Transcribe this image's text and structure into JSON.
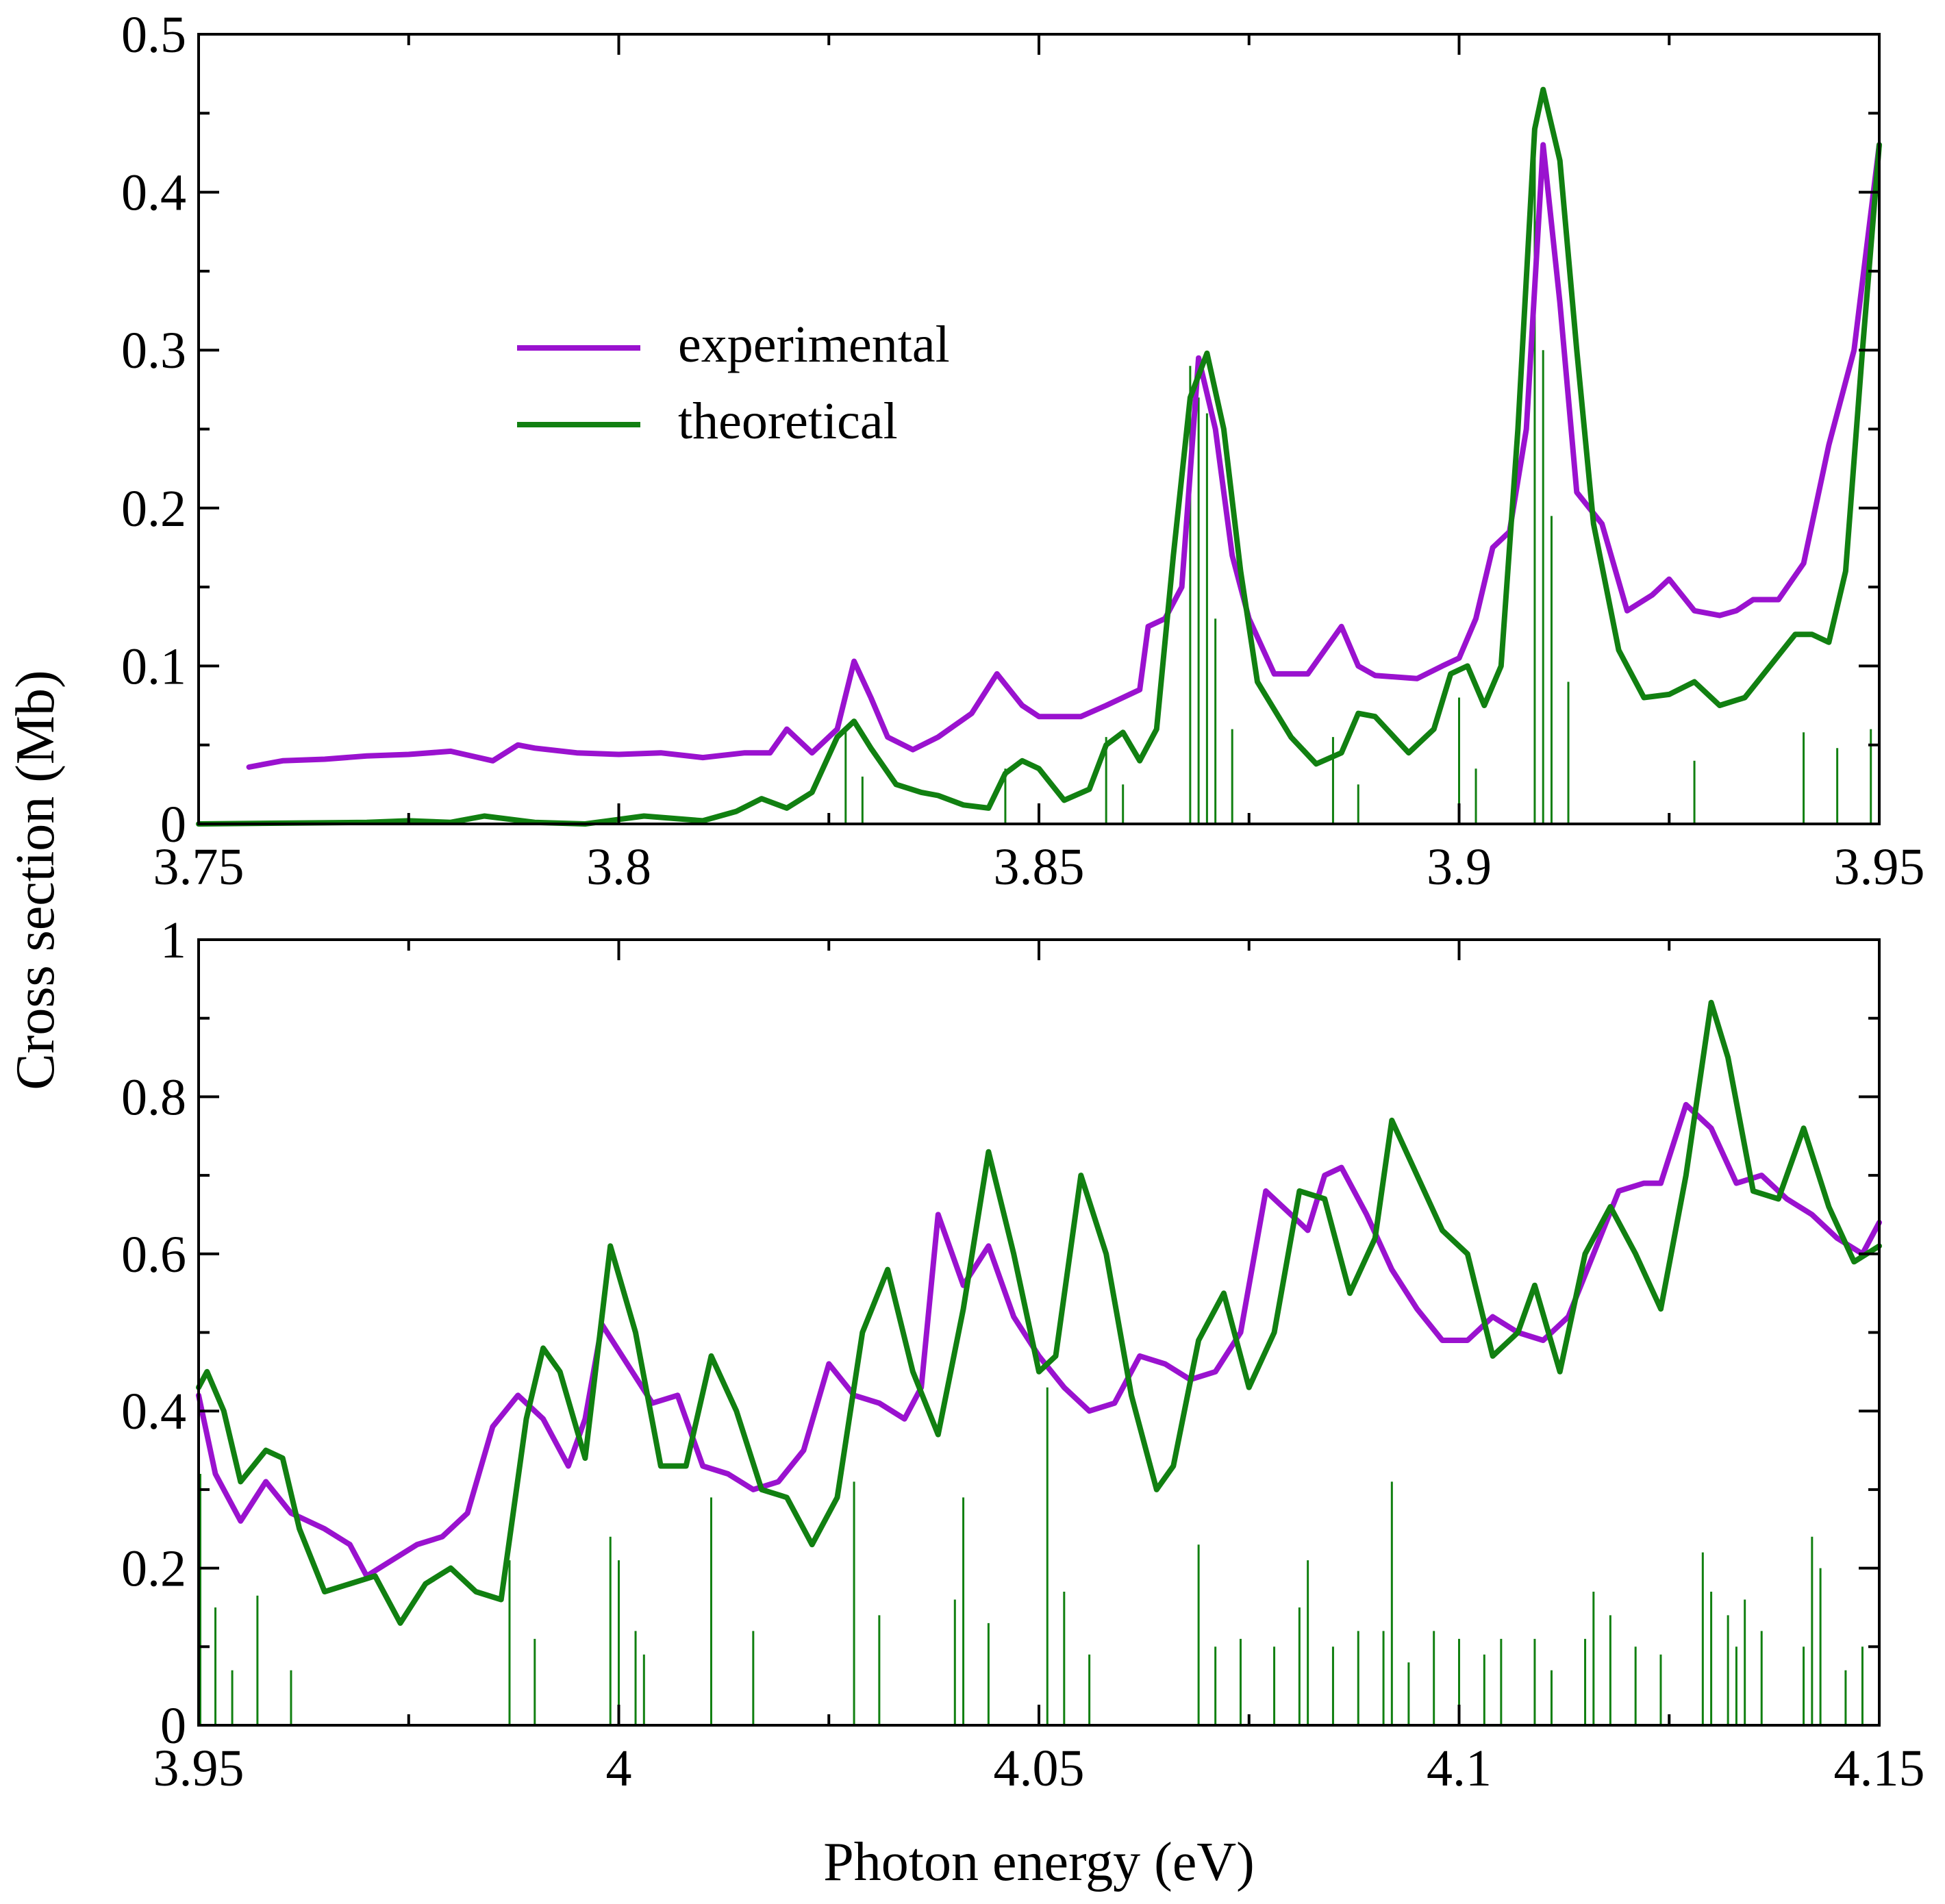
{
  "colors": {
    "experimental": "#9a12cf",
    "theoretical": "#118011",
    "sticks": "#118011",
    "axes": "#000000"
  },
  "chart_data": [
    {
      "type": "line",
      "xlabel": "",
      "ylabel": "Cross section (Mb)",
      "xlim": [
        3.75,
        3.95
      ],
      "ylim": [
        0,
        0.5
      ],
      "x_ticks": [
        "3.75",
        "3.8",
        "3.85",
        "3.9",
        "3.95"
      ],
      "y_ticks": [
        "0",
        "0.1",
        "0.2",
        "0.3",
        "0.4",
        "0.5"
      ],
      "legend": {
        "placement": "upper-left-center",
        "entries": [
          "experimental",
          "theoretical"
        ]
      },
      "grid": false,
      "series": [
        {
          "name": "experimental",
          "x": [
            3.756,
            3.76,
            3.765,
            3.77,
            3.775,
            3.78,
            3.785,
            3.788,
            3.79,
            3.795,
            3.8,
            3.805,
            3.81,
            3.815,
            3.818,
            3.82,
            3.823,
            3.826,
            3.828,
            3.83,
            3.832,
            3.835,
            3.838,
            3.842,
            3.845,
            3.848,
            3.85,
            3.855,
            3.858,
            3.86,
            3.862,
            3.863,
            3.865,
            3.867,
            3.869,
            3.871,
            3.873,
            3.875,
            3.878,
            3.882,
            3.884,
            3.886,
            3.888,
            3.89,
            3.895,
            3.898,
            3.9,
            3.902,
            3.904,
            3.906,
            3.908,
            3.91,
            3.912,
            3.914,
            3.917,
            3.92,
            3.923,
            3.925,
            3.928,
            3.931,
            3.933,
            3.935,
            3.938,
            3.941,
            3.944,
            3.947,
            3.95
          ],
          "y": [
            0.036,
            0.04,
            0.041,
            0.043,
            0.044,
            0.046,
            0.04,
            0.05,
            0.048,
            0.045,
            0.044,
            0.045,
            0.042,
            0.045,
            0.045,
            0.06,
            0.045,
            0.06,
            0.103,
            0.08,
            0.055,
            0.047,
            0.055,
            0.07,
            0.095,
            0.075,
            0.068,
            0.068,
            0.075,
            0.08,
            0.085,
            0.125,
            0.13,
            0.15,
            0.295,
            0.25,
            0.17,
            0.13,
            0.095,
            0.095,
            0.11,
            0.125,
            0.1,
            0.094,
            0.092,
            0.1,
            0.105,
            0.13,
            0.175,
            0.185,
            0.25,
            0.43,
            0.33,
            0.21,
            0.19,
            0.135,
            0.145,
            0.155,
            0.135,
            0.132,
            0.135,
            0.142,
            0.142,
            0.165,
            0.24,
            0.3,
            0.43
          ]
        },
        {
          "name": "theoretical",
          "x": [
            3.75,
            3.77,
            3.775,
            3.78,
            3.784,
            3.79,
            3.796,
            3.803,
            3.81,
            3.814,
            3.817,
            3.82,
            3.823,
            3.826,
            3.828,
            3.83,
            3.833,
            3.836,
            3.838,
            3.841,
            3.844,
            3.846,
            3.848,
            3.85,
            3.853,
            3.856,
            3.858,
            3.86,
            3.862,
            3.864,
            3.866,
            3.868,
            3.87,
            3.872,
            3.874,
            3.876,
            3.88,
            3.883,
            3.886,
            3.888,
            3.89,
            3.894,
            3.897,
            3.899,
            3.901,
            3.903,
            3.905,
            3.907,
            3.909,
            3.91,
            3.912,
            3.914,
            3.916,
            3.919,
            3.922,
            3.925,
            3.928,
            3.931,
            3.934,
            3.937,
            3.94,
            3.942,
            3.944,
            3.946,
            3.948,
            3.95
          ],
          "y": [
            0.0,
            0.001,
            0.002,
            0.001,
            0.005,
            0.001,
            0.0,
            0.005,
            0.002,
            0.008,
            0.016,
            0.01,
            0.02,
            0.055,
            0.065,
            0.048,
            0.025,
            0.02,
            0.018,
            0.012,
            0.01,
            0.032,
            0.04,
            0.035,
            0.015,
            0.022,
            0.05,
            0.058,
            0.04,
            0.06,
            0.17,
            0.27,
            0.298,
            0.25,
            0.16,
            0.09,
            0.055,
            0.038,
            0.045,
            0.07,
            0.068,
            0.045,
            0.06,
            0.095,
            0.1,
            0.075,
            0.1,
            0.25,
            0.44,
            0.465,
            0.42,
            0.3,
            0.19,
            0.11,
            0.08,
            0.082,
            0.09,
            0.075,
            0.08,
            0.1,
            0.12,
            0.12,
            0.115,
            0.16,
            0.3,
            0.43
          ]
        }
      ],
      "sticks": {
        "x": [
          3.827,
          3.829,
          3.846,
          3.858,
          3.86,
          3.868,
          3.869,
          3.87,
          3.871,
          3.873,
          3.885,
          3.888,
          3.9,
          3.902,
          3.909,
          3.91,
          3.911,
          3.913,
          3.928,
          3.941,
          3.945,
          3.949
        ],
        "y": [
          0.06,
          0.03,
          0.035,
          0.055,
          0.025,
          0.29,
          0.27,
          0.26,
          0.13,
          0.06,
          0.055,
          0.025,
          0.08,
          0.035,
          0.43,
          0.3,
          0.195,
          0.09,
          0.04,
          0.058,
          0.048,
          0.06
        ]
      }
    },
    {
      "type": "line",
      "xlabel": "Photon energy (eV)",
      "ylabel": "Cross section (Mb)",
      "xlim": [
        3.95,
        4.15
      ],
      "ylim": [
        0,
        1
      ],
      "x_ticks": [
        "3.95",
        "4",
        "4.05",
        "4.1",
        "4.15"
      ],
      "y_ticks": [
        "0",
        "0.2",
        "0.4",
        "0.6",
        "0.8",
        "1"
      ],
      "grid": false,
      "series": [
        {
          "name": "experimental",
          "x": [
            3.95,
            3.952,
            3.955,
            3.958,
            3.961,
            3.965,
            3.968,
            3.97,
            3.973,
            3.976,
            3.979,
            3.982,
            3.985,
            3.988,
            3.991,
            3.994,
            3.996,
            3.998,
            4.001,
            4.004,
            4.007,
            4.01,
            4.013,
            4.016,
            4.019,
            4.022,
            4.025,
            4.028,
            4.031,
            4.034,
            4.036,
            4.038,
            4.041,
            4.044,
            4.047,
            4.05,
            4.053,
            4.056,
            4.059,
            4.062,
            4.065,
            4.068,
            4.071,
            4.074,
            4.077,
            4.08,
            4.082,
            4.084,
            4.086,
            4.089,
            4.092,
            4.095,
            4.098,
            4.101,
            4.104,
            4.107,
            4.11,
            4.113,
            4.116,
            4.119,
            4.122,
            4.124,
            4.127,
            4.13,
            4.133,
            4.136,
            4.139,
            4.142,
            4.145,
            4.148,
            4.15
          ],
          "y": [
            0.42,
            0.32,
            0.26,
            0.31,
            0.27,
            0.25,
            0.23,
            0.19,
            0.21,
            0.23,
            0.24,
            0.27,
            0.38,
            0.42,
            0.39,
            0.33,
            0.39,
            0.51,
            0.46,
            0.41,
            0.42,
            0.33,
            0.32,
            0.3,
            0.31,
            0.35,
            0.46,
            0.42,
            0.41,
            0.39,
            0.43,
            0.65,
            0.56,
            0.61,
            0.52,
            0.47,
            0.43,
            0.4,
            0.41,
            0.47,
            0.46,
            0.44,
            0.45,
            0.5,
            0.68,
            0.65,
            0.63,
            0.7,
            0.71,
            0.65,
            0.58,
            0.53,
            0.49,
            0.49,
            0.52,
            0.5,
            0.49,
            0.52,
            0.6,
            0.68,
            0.69,
            0.69,
            0.79,
            0.76,
            0.69,
            0.7,
            0.67,
            0.65,
            0.62,
            0.6,
            0.64
          ]
        },
        {
          "name": "theoretical",
          "x": [
            3.95,
            3.951,
            3.953,
            3.955,
            3.958,
            3.96,
            3.962,
            3.965,
            3.968,
            3.971,
            3.974,
            3.977,
            3.98,
            3.983,
            3.986,
            3.989,
            3.991,
            3.993,
            3.996,
            3.999,
            4.002,
            4.005,
            4.008,
            4.011,
            4.014,
            4.017,
            4.02,
            4.023,
            4.026,
            4.029,
            4.032,
            4.035,
            4.038,
            4.041,
            4.044,
            4.047,
            4.05,
            4.052,
            4.055,
            4.058,
            4.061,
            4.064,
            4.066,
            4.069,
            4.072,
            4.075,
            4.078,
            4.081,
            4.084,
            4.087,
            4.09,
            4.092,
            4.095,
            4.098,
            4.101,
            4.104,
            4.107,
            4.109,
            4.112,
            4.115,
            4.118,
            4.121,
            4.124,
            4.127,
            4.13,
            4.132,
            4.135,
            4.138,
            4.141,
            4.144,
            4.147,
            4.15
          ],
          "y": [
            0.43,
            0.45,
            0.4,
            0.31,
            0.35,
            0.34,
            0.25,
            0.17,
            0.18,
            0.19,
            0.13,
            0.18,
            0.2,
            0.17,
            0.16,
            0.39,
            0.48,
            0.45,
            0.34,
            0.61,
            0.5,
            0.33,
            0.33,
            0.47,
            0.4,
            0.3,
            0.29,
            0.23,
            0.29,
            0.5,
            0.58,
            0.45,
            0.37,
            0.53,
            0.73,
            0.6,
            0.45,
            0.47,
            0.7,
            0.6,
            0.42,
            0.3,
            0.33,
            0.49,
            0.55,
            0.43,
            0.5,
            0.68,
            0.67,
            0.55,
            0.62,
            0.77,
            0.7,
            0.63,
            0.6,
            0.47,
            0.5,
            0.56,
            0.45,
            0.6,
            0.66,
            0.6,
            0.53,
            0.7,
            0.92,
            0.85,
            0.68,
            0.67,
            0.76,
            0.66,
            0.59,
            0.61
          ]
        }
      ],
      "sticks": {
        "x": [
          3.9502,
          3.952,
          3.954,
          3.957,
          3.961,
          3.987,
          3.99,
          3.999,
          4.0,
          4.002,
          4.003,
          4.011,
          4.016,
          4.028,
          4.031,
          4.04,
          4.041,
          4.044,
          4.051,
          4.053,
          4.056,
          4.069,
          4.071,
          4.074,
          4.078,
          4.081,
          4.082,
          4.085,
          4.088,
          4.091,
          4.092,
          4.094,
          4.097,
          4.1,
          4.103,
          4.105,
          4.109,
          4.111,
          4.115,
          4.116,
          4.118,
          4.121,
          4.124,
          4.129,
          4.13,
          4.132,
          4.133,
          4.134,
          4.136,
          4.141,
          4.142,
          4.143,
          4.146,
          4.148
        ],
        "y": [
          0.32,
          0.15,
          0.07,
          0.165,
          0.07,
          0.21,
          0.11,
          0.24,
          0.21,
          0.12,
          0.09,
          0.29,
          0.12,
          0.31,
          0.14,
          0.16,
          0.29,
          0.13,
          0.43,
          0.17,
          0.09,
          0.23,
          0.1,
          0.11,
          0.1,
          0.15,
          0.21,
          0.1,
          0.12,
          0.12,
          0.31,
          0.08,
          0.12,
          0.11,
          0.09,
          0.11,
          0.11,
          0.07,
          0.11,
          0.17,
          0.14,
          0.1,
          0.09,
          0.22,
          0.17,
          0.14,
          0.1,
          0.16,
          0.12,
          0.1,
          0.24,
          0.2,
          0.07,
          0.1
        ]
      }
    }
  ]
}
